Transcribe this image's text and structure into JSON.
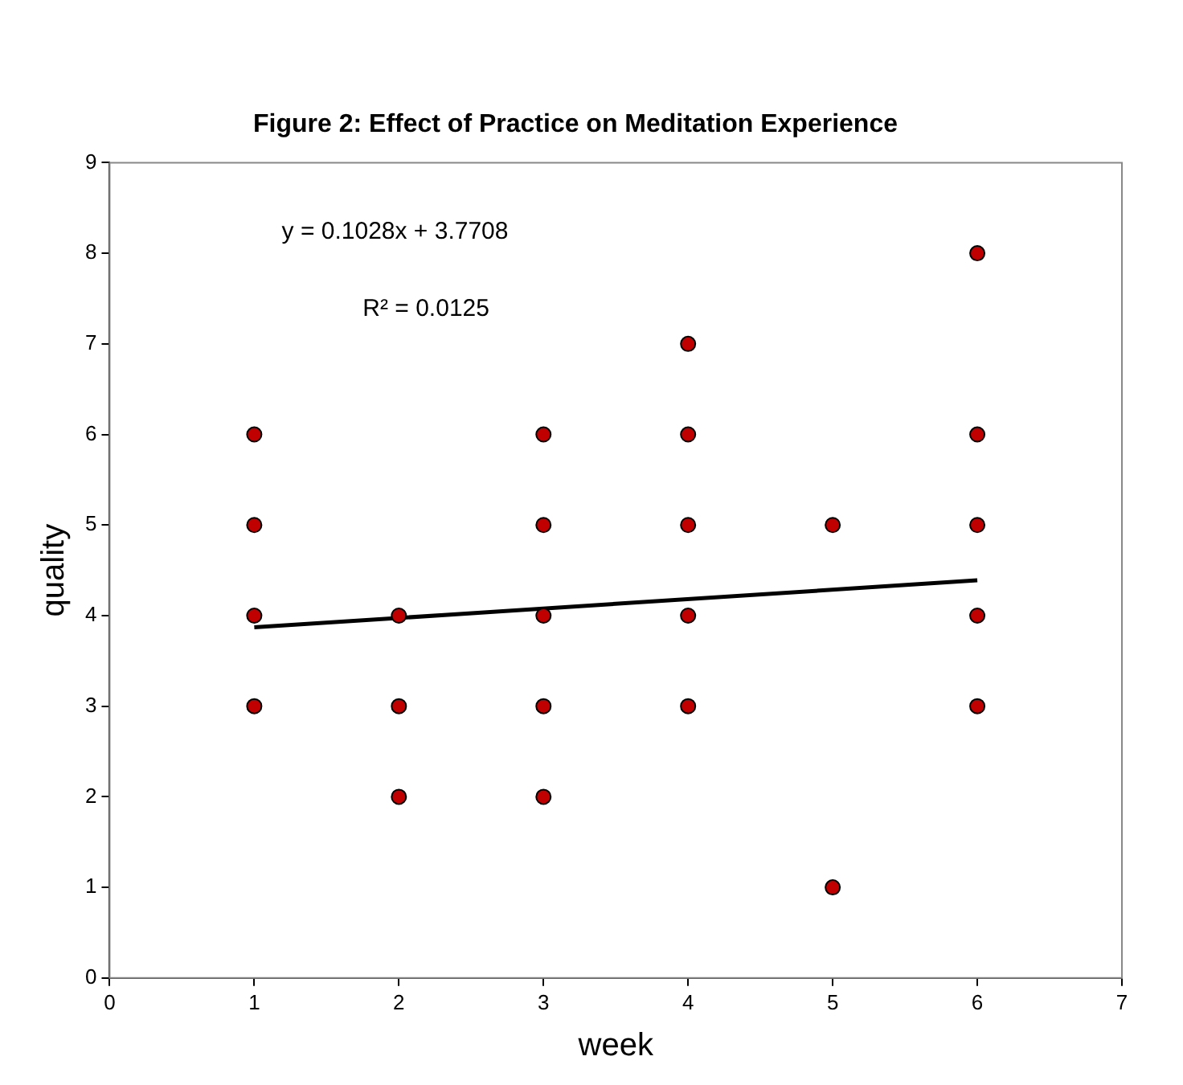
{
  "chart_data": {
    "type": "scatter",
    "title": "Figure 2: Effect of Practice on Meditation Experience",
    "xlabel": "week",
    "ylabel": "quality",
    "xlim": [
      0,
      7
    ],
    "xticks": [
      0,
      1,
      2,
      3,
      4,
      5,
      6,
      7
    ],
    "ylim": [
      0,
      9
    ],
    "yticks": [
      0,
      1,
      2,
      3,
      4,
      5,
      6,
      7,
      8,
      9
    ],
    "grid": false,
    "legend": false,
    "marker": "circle",
    "series": [
      {
        "type": "scatter",
        "color": "#c00000",
        "x": [
          1,
          1,
          1,
          1,
          2,
          2,
          2,
          3,
          3,
          3,
          3,
          3,
          4,
          4,
          4,
          4,
          4,
          5,
          5,
          6,
          6,
          6,
          6,
          6
        ],
        "values": [
          3,
          4,
          5,
          6,
          2,
          3,
          4,
          2,
          3,
          4,
          5,
          6,
          3,
          4,
          5,
          6,
          7,
          1,
          5,
          3,
          4,
          5,
          6,
          8
        ]
      },
      {
        "type": "line",
        "color": "#000000",
        "marker": "none",
        "line_style": "solid",
        "x": [
          1,
          6
        ],
        "values": [
          3.87,
          4.39
        ]
      }
    ],
    "annotations": [
      "y = 0.1028x + 3.7708",
      "R² = 0.0125"
    ]
  }
}
